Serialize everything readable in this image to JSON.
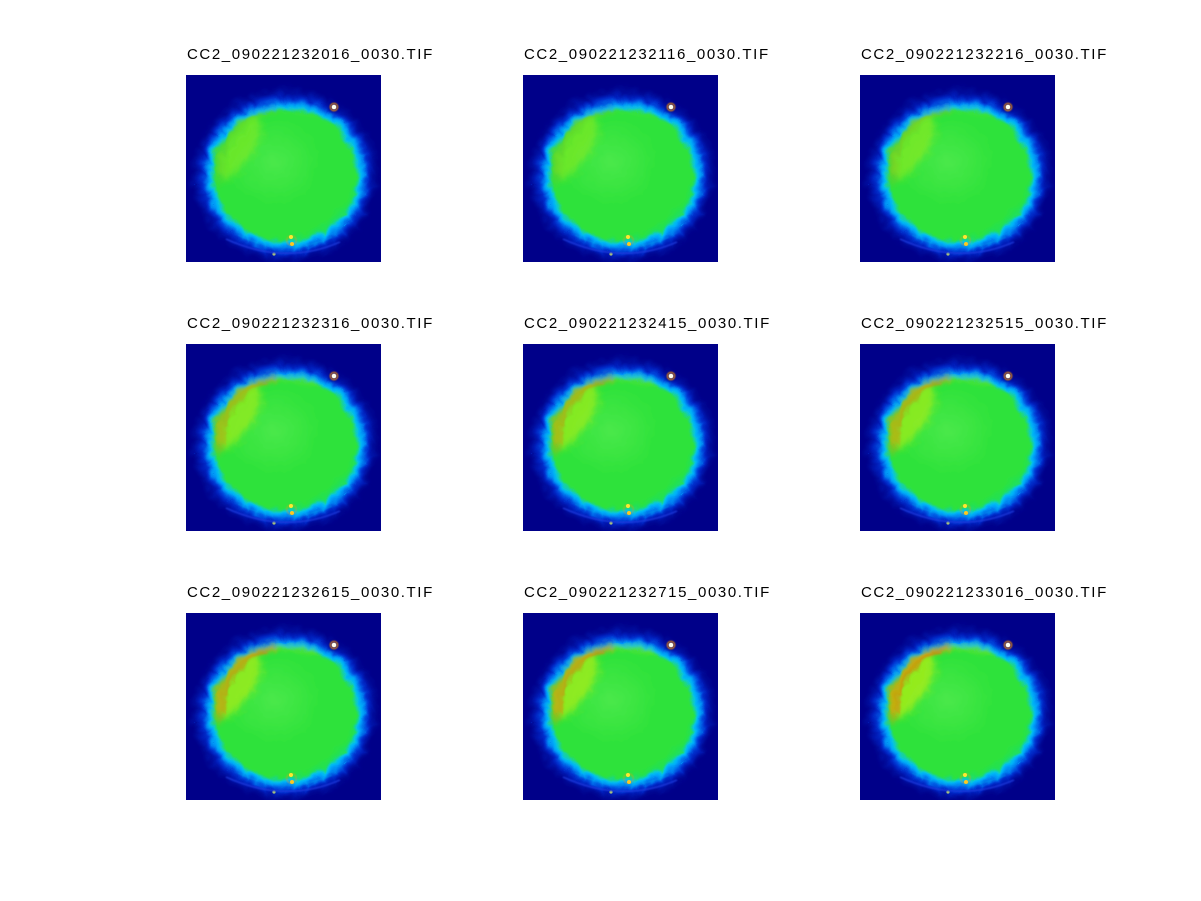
{
  "figure": {
    "kind": "image-montage-figure",
    "background_color": "#ffffff",
    "title_text_color": "#000000"
  },
  "chart_data": {
    "type": "heatmap",
    "layout": "3x3 montage of false-color image frames",
    "colormap": "jet",
    "grid": {
      "rows": 3,
      "cols": 3
    },
    "panels": [
      {
        "title": "CC2_090221232016_0030.TIF",
        "hotspot_intensity": 0.15
      },
      {
        "title": "CC2_090221232116_0030.TIF",
        "hotspot_intensity": 0.2
      },
      {
        "title": "CC2_090221232216_0030.TIF",
        "hotspot_intensity": 0.32
      },
      {
        "title": "CC2_090221232316_0030.TIF",
        "hotspot_intensity": 0.65
      },
      {
        "title": "CC2_090221232415_0030.TIF",
        "hotspot_intensity": 0.7
      },
      {
        "title": "CC2_090221232515_0030.TIF",
        "hotspot_intensity": 0.76
      },
      {
        "title": "CC2_090221232615_0030.TIF",
        "hotspot_intensity": 0.86
      },
      {
        "title": "CC2_090221232715_0030.TIF",
        "hotspot_intensity": 0.88
      },
      {
        "title": "CC2_090221233016_0030.TIF",
        "hotspot_intensity": 1.0
      }
    ],
    "panel_description": "circular sample imaged in jet false color: navy background, blue/cyan fuzzy rim, green body, orange hotspot arc on upper-left edge growing over time, white bright spot upper-right, small yellow dots bottom center"
  },
  "palette": {
    "tile_background": "#000089",
    "halo_blue": "#0040f0",
    "rim_cyan": "#00c3ff",
    "body_center": "#4ae84a",
    "body_mid": "#2ee23a",
    "body_edge": "#00dd9a",
    "patch_yellow_green": "#b4ee14",
    "hotspot_arc": "#ff9100",
    "hotspot_core": "#ff4d00",
    "top_edge_yellow": "#dded00",
    "spot_white": "#ffffee",
    "spot_ring": "#ff9900",
    "dot_yellow_1": "#ffe830",
    "dot_yellow_2": "#ffc81e",
    "dot_faint": "#cfe86a",
    "bottom_arc_blue": "#1f3bdd",
    "bottom_arc_cyan": "#00aaee"
  }
}
